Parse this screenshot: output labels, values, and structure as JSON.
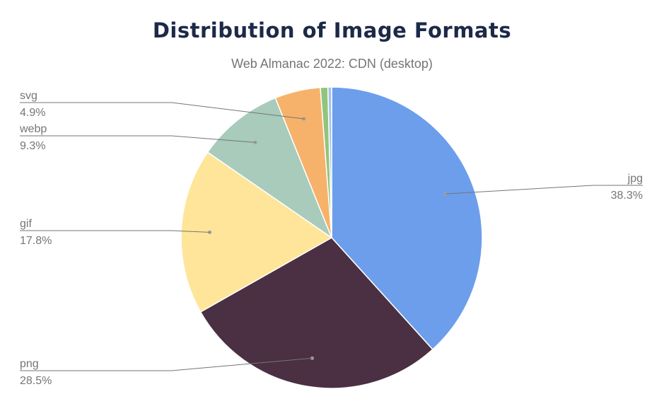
{
  "chart_data": {
    "type": "pie",
    "title": "Distribution of Image Formats",
    "subtitle": "Web Almanac 2022: CDN (desktop)",
    "slices": [
      {
        "label": "jpg",
        "value": 38.3,
        "display": "38.3%",
        "color": "#6d9eeb"
      },
      {
        "label": "png",
        "value": 28.5,
        "display": "28.5%",
        "color": "#4a3042"
      },
      {
        "label": "gif",
        "value": 17.8,
        "display": "17.8%",
        "color": "#ffe599"
      },
      {
        "label": "webp",
        "value": 9.3,
        "display": "9.3%",
        "color": "#a8cbbb"
      },
      {
        "label": "svg",
        "value": 4.9,
        "display": "4.9%",
        "color": "#f6b26b"
      },
      {
        "label": "",
        "value": 0.8,
        "display": "",
        "color": "#93c47d"
      },
      {
        "label": "",
        "value": 0.4,
        "display": "",
        "color": "#9fc5e8"
      }
    ],
    "legend": "none"
  }
}
